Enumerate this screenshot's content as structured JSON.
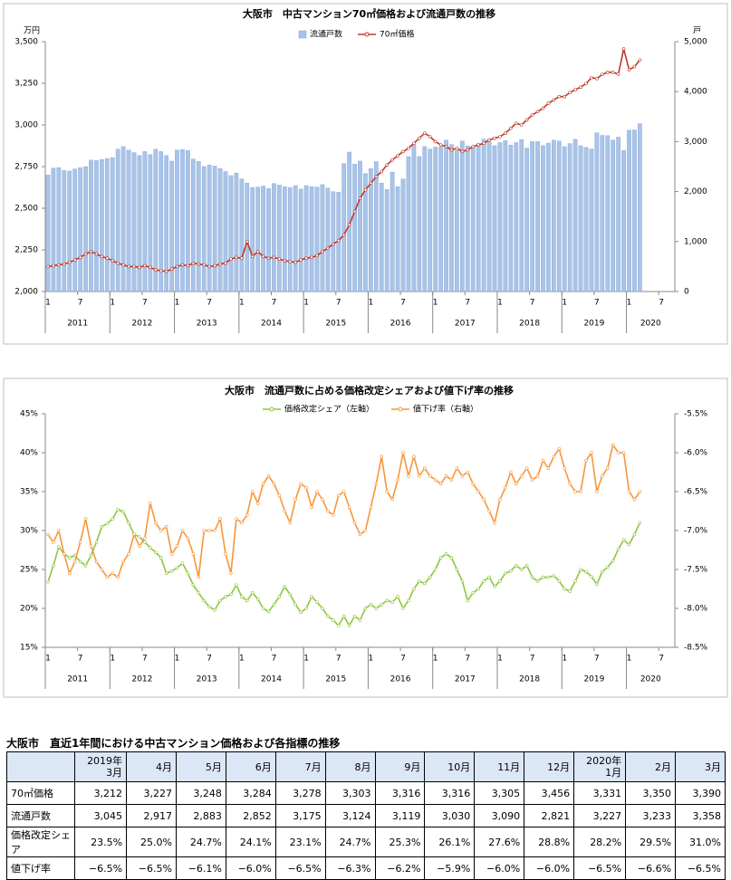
{
  "chart_data": [
    {
      "type": "combo",
      "title": "大阪市　中古マンション70㎡価格および流通戸数の推移",
      "y_unit": "万円",
      "y2_unit": "戸",
      "categories": [
        "1",
        null,
        null,
        null,
        null,
        null,
        "7",
        null,
        null,
        null,
        null,
        null,
        "1",
        null,
        null,
        null,
        null,
        null,
        "7",
        null,
        null,
        null,
        null,
        null,
        "1",
        null,
        null,
        null,
        null,
        null,
        "7",
        null,
        null,
        null,
        null,
        null,
        "1",
        null,
        null,
        null,
        null,
        null,
        "7",
        null,
        null,
        null,
        null,
        null,
        "1",
        null,
        null,
        null,
        null,
        null,
        "7",
        null,
        null,
        null,
        null,
        null,
        "1",
        null,
        null,
        null,
        null,
        null,
        "7",
        null,
        null,
        null,
        null,
        null,
        "1",
        null,
        null,
        null,
        null,
        null,
        "7",
        null,
        null,
        null,
        null,
        null,
        "1",
        null,
        null,
        null,
        null,
        null,
        "7",
        null,
        null,
        null,
        null,
        null,
        "1",
        null,
        null,
        null,
        null,
        null,
        "7",
        null,
        null,
        null,
        null,
        null,
        "1",
        null,
        null,
        null,
        null,
        null,
        "7",
        null,
        null
      ],
      "year_labels": [
        "2011",
        "2012",
        "2013",
        "2014",
        "2015",
        "2016",
        "2017",
        "2018",
        "2019",
        "2020"
      ],
      "ylim": [
        2000,
        3500
      ],
      "yticks": [
        {
          "value": 2000,
          "label": "2,000"
        },
        {
          "value": 2250,
          "label": "2,250"
        },
        {
          "value": 2500,
          "label": "2,500"
        },
        {
          "value": 2750,
          "label": "2,750"
        },
        {
          "value": 3000,
          "label": "3,000"
        },
        {
          "value": 3250,
          "label": "3,250"
        },
        {
          "value": 3500,
          "label": "3,500"
        }
      ],
      "y2lim": [
        0,
        5000
      ],
      "y2ticks": [
        0,
        {
          "value": 1000,
          "label": "1,000"
        },
        {
          "value": 2000,
          "label": "2,000"
        },
        {
          "value": 3000,
          "label": "3,000"
        },
        {
          "value": 4000,
          "label": "4,000"
        },
        {
          "value": 5000,
          "label": "5,000"
        }
      ],
      "series": [
        {
          "name": "流通戸数",
          "type": "bar",
          "axis": "y2",
          "color": "#a9c4e8",
          "values": [
            2330,
            2470,
            2480,
            2420,
            2410,
            2450,
            2480,
            2500,
            2630,
            2620,
            2640,
            2660,
            2680,
            2850,
            2900,
            2830,
            2780,
            2720,
            2800,
            2740,
            2850,
            2800,
            2720,
            2610,
            2830,
            2840,
            2820,
            2650,
            2600,
            2500,
            2530,
            2510,
            2460,
            2400,
            2320,
            2370,
            2250,
            2170,
            2080,
            2090,
            2110,
            2060,
            2160,
            2130,
            2100,
            2080,
            2120,
            2050,
            2120,
            2100,
            2090,
            2140,
            2070,
            2000,
            1990,
            2560,
            2790,
            2550,
            2610,
            2360,
            2460,
            2600,
            2170,
            2040,
            2390,
            2100,
            2250,
            2700,
            2940,
            2700,
            2900,
            2850,
            2890,
            2890,
            3030,
            2940,
            2820,
            3010,
            2910,
            2880,
            2960,
            3050,
            3000,
            2920,
            2980,
            3020,
            2930,
            2980,
            3040,
            2870,
            3000,
            3000,
            2920,
            2970,
            3030,
            3010,
            2900,
            2960,
            3045,
            2917,
            2883,
            2852,
            3175,
            3124,
            3119,
            3030,
            3090,
            2821,
            3227,
            3233,
            3358,
            null,
            null,
            null,
            null,
            null,
            null
          ]
        },
        {
          "name": "70㎡価格",
          "type": "line",
          "color": "#c0392b",
          "values": [
            2150,
            2155,
            2160,
            2165,
            2175,
            2190,
            2205,
            2225,
            2240,
            2225,
            2210,
            2200,
            2185,
            2170,
            2160,
            2150,
            2150,
            2145,
            2155,
            2145,
            2130,
            2125,
            2120,
            2135,
            2150,
            2160,
            2155,
            2170,
            2165,
            2160,
            2150,
            2155,
            2165,
            2170,
            2195,
            2205,
            2200,
            2300,
            2210,
            2240,
            2210,
            2200,
            2205,
            2195,
            2185,
            2180,
            2175,
            2190,
            2200,
            2205,
            2215,
            2240,
            2260,
            2285,
            2305,
            2340,
            2400,
            2480,
            2560,
            2610,
            2650,
            2690,
            2720,
            2760,
            2790,
            2815,
            2840,
            2860,
            2890,
            2920,
            2950,
            2930,
            2900,
            2880,
            2870,
            2850,
            2860,
            2840,
            2850,
            2870,
            2880,
            2890,
            2910,
            2920,
            2930,
            2950,
            2980,
            3010,
            3000,
            3030,
            3060,
            3080,
            3100,
            3130,
            3150,
            3170,
            3170,
            3195,
            3212,
            3227,
            3248,
            3284,
            3278,
            3303,
            3316,
            3316,
            3305,
            3456,
            3331,
            3350,
            3390,
            null,
            null,
            null,
            null,
            null,
            null
          ]
        }
      ]
    },
    {
      "type": "line",
      "title": "大阪市　流通戸数に占める価格改定シェアおよび値下げ率の推移",
      "categories": [
        "1",
        null,
        null,
        null,
        null,
        null,
        "7",
        null,
        null,
        null,
        null,
        null,
        "1",
        null,
        null,
        null,
        null,
        null,
        "7",
        null,
        null,
        null,
        null,
        null,
        "1",
        null,
        null,
        null,
        null,
        null,
        "7",
        null,
        null,
        null,
        null,
        null,
        "1",
        null,
        null,
        null,
        null,
        null,
        "7",
        null,
        null,
        null,
        null,
        null,
        "1",
        null,
        null,
        null,
        null,
        null,
        "7",
        null,
        null,
        null,
        null,
        null,
        "1",
        null,
        null,
        null,
        null,
        null,
        "7",
        null,
        null,
        null,
        null,
        null,
        "1",
        null,
        null,
        null,
        null,
        null,
        "7",
        null,
        null,
        null,
        null,
        null,
        "1",
        null,
        null,
        null,
        null,
        null,
        "7",
        null,
        null,
        null,
        null,
        null,
        "1",
        null,
        null,
        null,
        null,
        null,
        "7",
        null,
        null,
        null,
        null,
        null,
        "1",
        null,
        null,
        null,
        null,
        null,
        "7",
        null,
        null
      ],
      "year_labels": [
        "2011",
        "2012",
        "2013",
        "2014",
        "2015",
        "2016",
        "2017",
        "2018",
        "2019",
        "2020"
      ],
      "ylim": [
        15,
        45
      ],
      "yticks": [
        {
          "value": 15,
          "label": "15%"
        },
        {
          "value": 20,
          "label": "20%"
        },
        {
          "value": 25,
          "label": "25%"
        },
        {
          "value": 30,
          "label": "30%"
        },
        {
          "value": 35,
          "label": "35%"
        },
        {
          "value": 40,
          "label": "40%"
        },
        {
          "value": 45,
          "label": "45%"
        }
      ],
      "y2lim": [
        -8.5,
        -5.5
      ],
      "y2ticks": [
        {
          "value": -8.5,
          "label": "-8.5%"
        },
        {
          "value": -8.0,
          "label": "-8.0%"
        },
        {
          "value": -7.5,
          "label": "-7.5%"
        },
        {
          "value": -7.0,
          "label": "-7.0%"
        },
        {
          "value": -6.5,
          "label": "-6.5%"
        },
        {
          "value": -6.0,
          "label": "-6.0%"
        },
        {
          "value": -5.5,
          "label": "-5.5%"
        }
      ],
      "series": [
        {
          "name": "価格改定シェア（左軸）",
          "type": "line",
          "color": "#8dc63f",
          "values": [
            23.4,
            25.5,
            27.9,
            27.0,
            26.5,
            26.8,
            26.0,
            25.5,
            26.8,
            28.5,
            30.5,
            30.9,
            31.5,
            32.7,
            32.4,
            31.0,
            29.5,
            29.2,
            28.5,
            27.8,
            27.2,
            26.5,
            24.5,
            24.8,
            25.2,
            25.8,
            24.5,
            23.0,
            22.0,
            21.0,
            20.2,
            19.8,
            21.0,
            21.5,
            21.8,
            23.0,
            21.5,
            21.0,
            22.0,
            21.2,
            20.0,
            19.6,
            20.5,
            21.5,
            22.8,
            21.8,
            20.5,
            19.5,
            20.0,
            21.5,
            20.8,
            20.0,
            19.0,
            18.5,
            17.8,
            19.0,
            17.8,
            19.0,
            18.5,
            20.0,
            20.5,
            20.0,
            20.5,
            21.0,
            20.8,
            21.5,
            20.0,
            21.0,
            22.5,
            23.5,
            23.2,
            24.0,
            25.0,
            26.5,
            27.0,
            26.5,
            25.0,
            23.5,
            21.0,
            22.0,
            22.5,
            23.5,
            24.0,
            22.8,
            23.5,
            24.5,
            24.8,
            25.5,
            25.0,
            25.5,
            24.0,
            23.5,
            24.0,
            24.0,
            24.2,
            23.5,
            22.5,
            22.2,
            23.5,
            25.0,
            24.7,
            24.1,
            23.1,
            24.7,
            25.3,
            26.1,
            27.6,
            28.8,
            28.2,
            29.5,
            31.0,
            null,
            null,
            null,
            null,
            null,
            null
          ]
        },
        {
          "name": "値下げ率（右軸）",
          "type": "line",
          "axis": "y2",
          "color": "#f7963a",
          "values": [
            -7.05,
            -7.15,
            -7.0,
            -7.3,
            -7.55,
            -7.4,
            -7.15,
            -6.85,
            -7.2,
            -7.4,
            -7.5,
            -7.6,
            -7.55,
            -7.6,
            -7.4,
            -7.3,
            -7.05,
            -7.2,
            -7.1,
            -6.65,
            -6.9,
            -7.0,
            -6.95,
            -7.3,
            -7.2,
            -7.0,
            -7.1,
            -7.3,
            -7.6,
            -7.0,
            -7.0,
            -7.0,
            -6.85,
            -7.3,
            -7.55,
            -6.85,
            -6.9,
            -6.8,
            -6.5,
            -6.65,
            -6.4,
            -6.3,
            -6.4,
            -6.55,
            -6.75,
            -6.9,
            -6.6,
            -6.4,
            -6.45,
            -6.7,
            -6.5,
            -6.6,
            -6.75,
            -6.8,
            -6.55,
            -6.5,
            -6.7,
            -6.9,
            -7.05,
            -7.0,
            -6.7,
            -6.4,
            -6.05,
            -6.5,
            -6.6,
            -6.35,
            -6.0,
            -6.3,
            -6.05,
            -6.3,
            -6.2,
            -6.3,
            -6.35,
            -6.4,
            -6.3,
            -6.35,
            -6.2,
            -6.3,
            -6.25,
            -6.4,
            -6.5,
            -6.6,
            -6.75,
            -6.9,
            -6.6,
            -6.45,
            -6.25,
            -6.4,
            -6.3,
            -6.2,
            -6.35,
            -6.3,
            -6.1,
            -6.2,
            -6.05,
            -5.95,
            -6.2,
            -6.4,
            -6.5,
            -6.5,
            -6.1,
            -6.0,
            -6.5,
            -6.3,
            -6.2,
            -5.9,
            -6.0,
            -6.0,
            -6.5,
            -6.6,
            -6.5,
            null,
            null,
            null,
            null,
            null,
            null
          ]
        }
      ]
    }
  ],
  "table": {
    "title": "大阪市　直近1年間における中古マンション価格および各指標の推移",
    "header": [
      {
        "year": "2019年",
        "month": "3月"
      },
      {
        "month": "4月"
      },
      {
        "month": "5月"
      },
      {
        "month": "6月"
      },
      {
        "month": "7月"
      },
      {
        "month": "8月"
      },
      {
        "month": "9月"
      },
      {
        "month": "10月"
      },
      {
        "month": "11月"
      },
      {
        "month": "12月"
      },
      {
        "year": "2020年",
        "month": "1月"
      },
      {
        "month": "2月"
      },
      {
        "month": "3月"
      }
    ],
    "rows": [
      {
        "label": "70㎡価格",
        "cells": [
          "3,212",
          "3,227",
          "3,248",
          "3,284",
          "3,278",
          "3,303",
          "3,316",
          "3,316",
          "3,305",
          "3,456",
          "3,331",
          "3,350",
          "3,390"
        ]
      },
      {
        "label": "流通戸数",
        "cells": [
          "3,045",
          "2,917",
          "2,883",
          "2,852",
          "3,175",
          "3,124",
          "3,119",
          "3,030",
          "3,090",
          "2,821",
          "3,227",
          "3,233",
          "3,358"
        ]
      },
      {
        "label": "価格改定シェア",
        "cells": [
          "23.5%",
          "25.0%",
          "24.7%",
          "24.1%",
          "23.1%",
          "24.7%",
          "25.3%",
          "26.1%",
          "27.6%",
          "28.8%",
          "28.2%",
          "29.5%",
          "31.0%"
        ]
      },
      {
        "label": "値下げ率",
        "cells": [
          "−6.5%",
          "−6.5%",
          "−6.1%",
          "−6.0%",
          "−6.5%",
          "−6.3%",
          "−6.2%",
          "−5.9%",
          "−6.0%",
          "−6.0%",
          "−6.5%",
          "−6.6%",
          "−6.5%"
        ]
      }
    ]
  }
}
